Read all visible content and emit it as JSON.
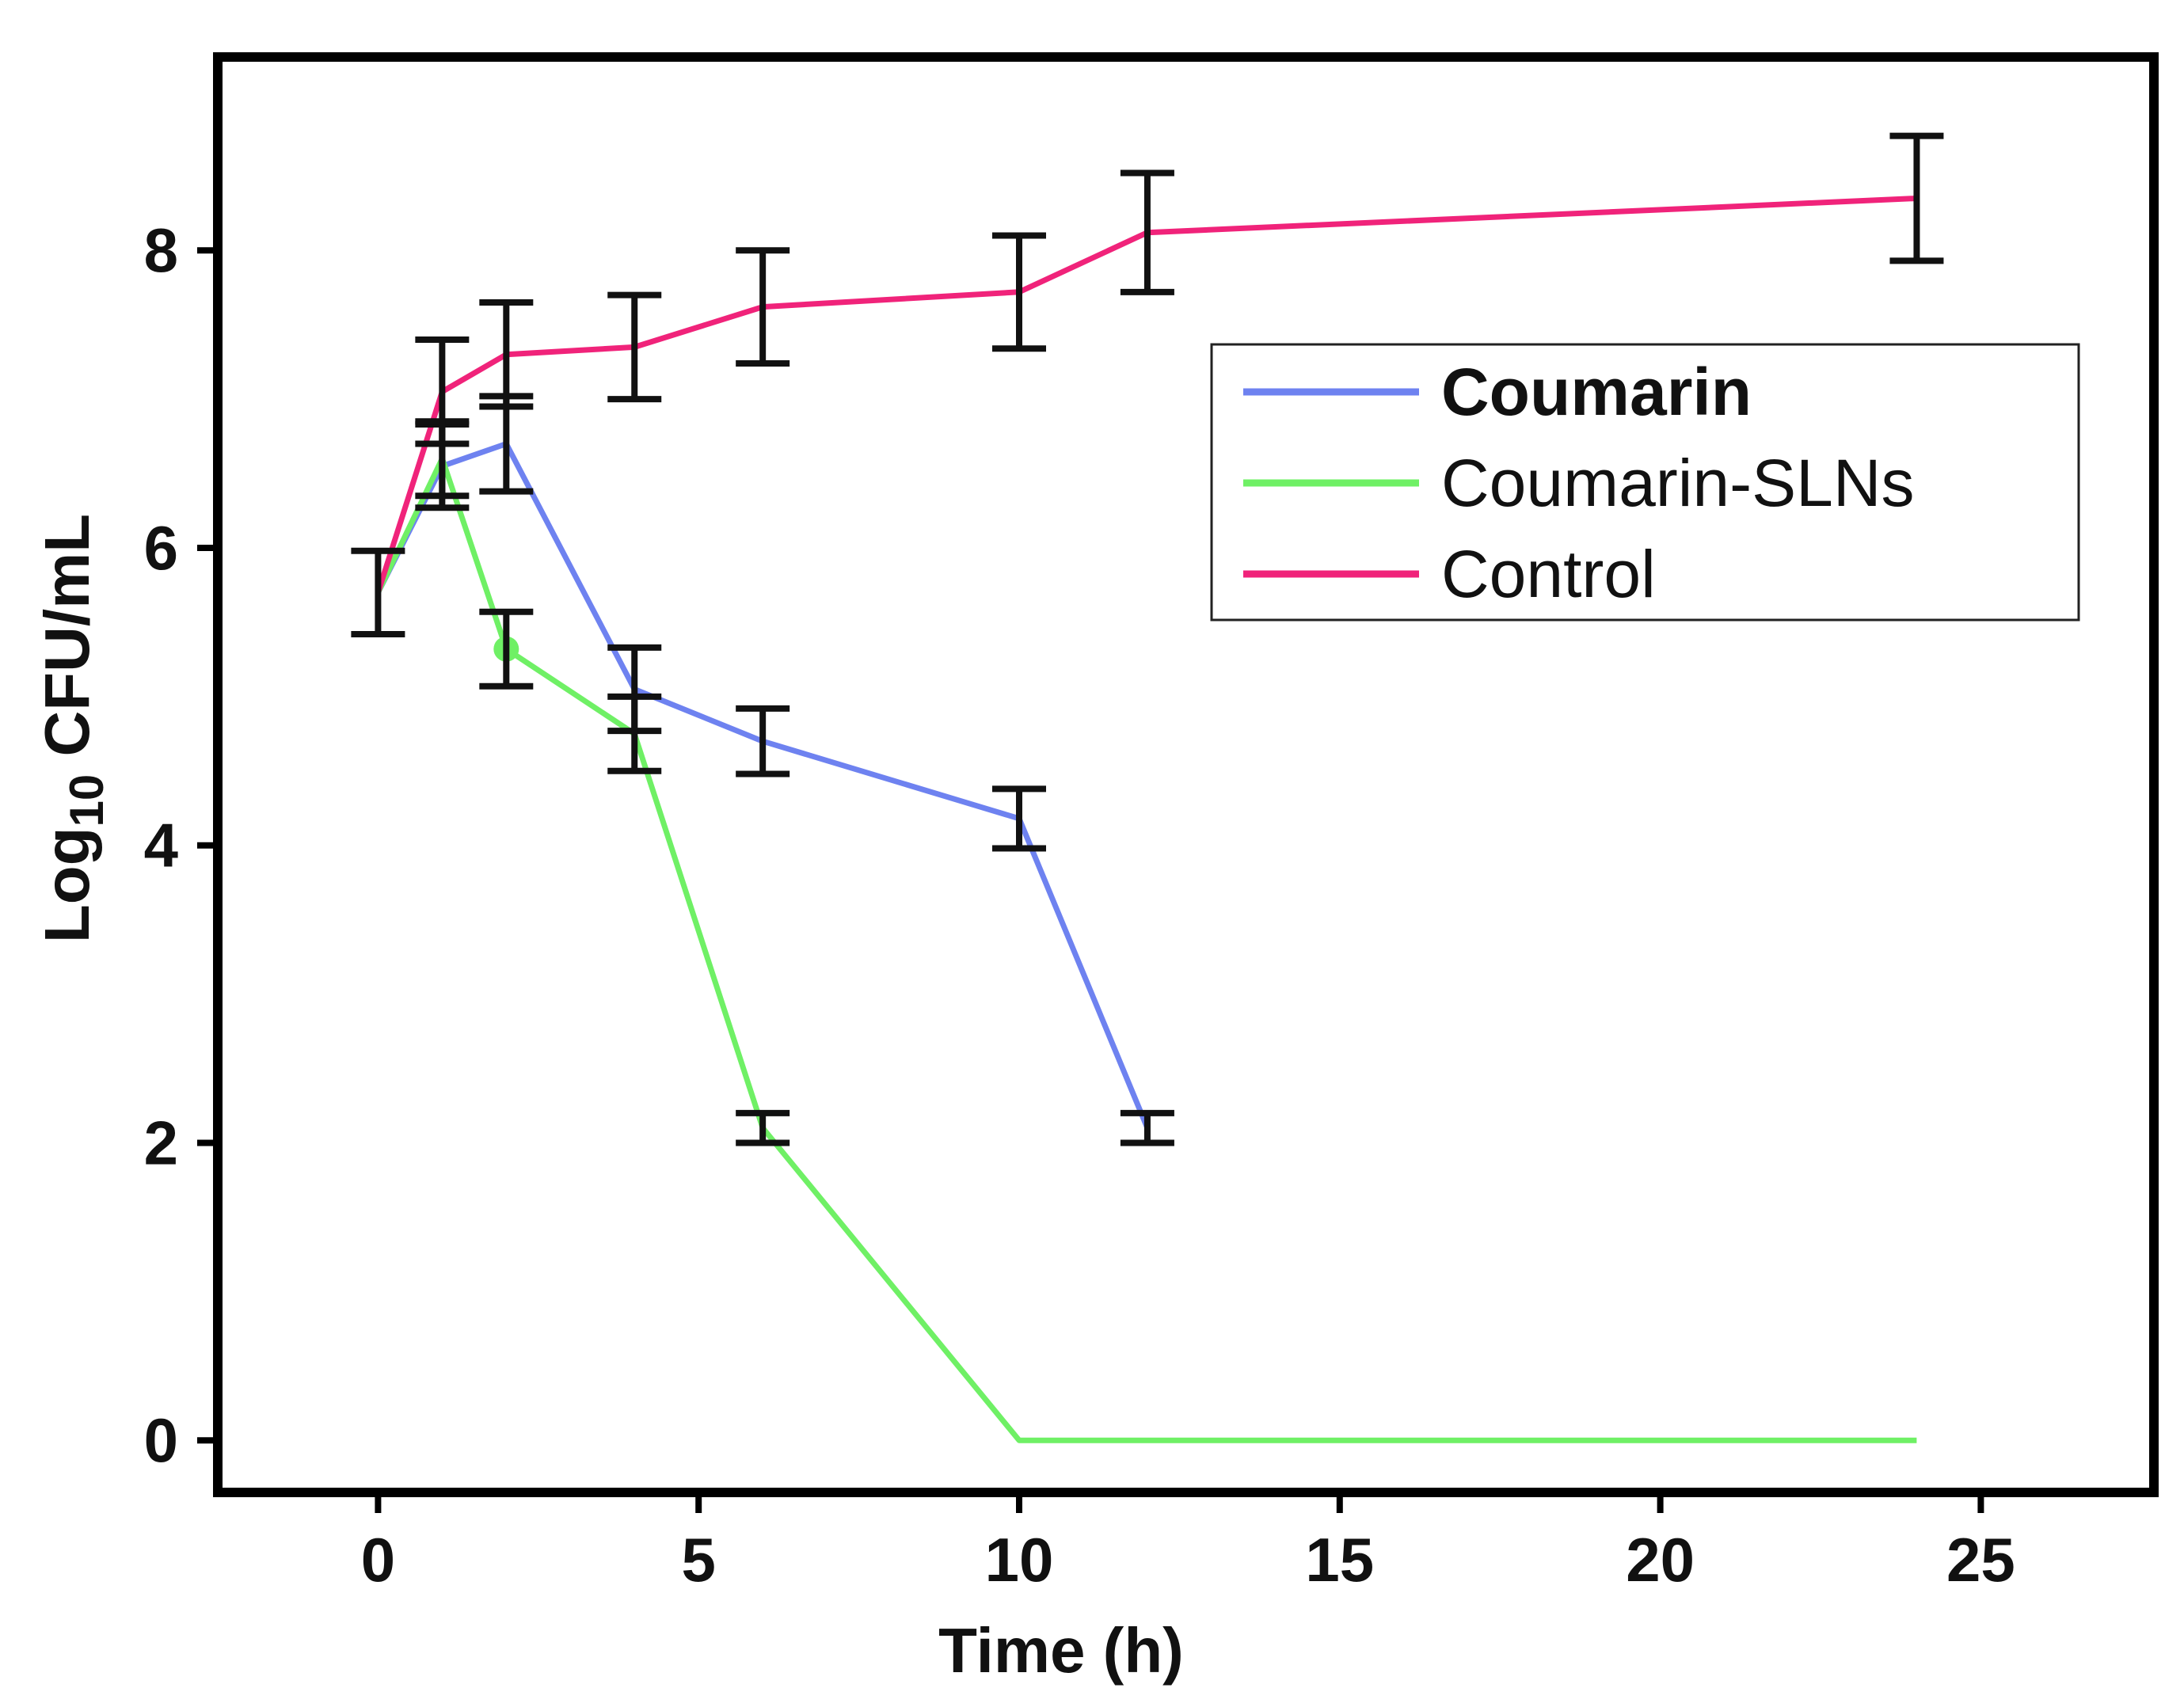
{
  "chart_data": {
    "type": "line",
    "title": "",
    "xlabel": "Time (h)",
    "ylabel_main": "Log",
    "ylabel_sub": "10",
    "ylabel_rest": " CFU/mL",
    "xlim": [
      -2.5,
      27.7
    ],
    "ylim": [
      -0.35,
      9.3
    ],
    "xticks": [
      0,
      5,
      10,
      15,
      20,
      25
    ],
    "yticks": [
      0,
      2,
      4,
      6,
      8
    ],
    "grid": false,
    "legend_position": "top-right",
    "series": [
      {
        "name": "Coumarin",
        "color": "#6e82f0",
        "x": [
          0,
          1,
          2,
          4,
          6,
          10,
          12
        ],
        "y": [
          5.7,
          6.55,
          6.7,
          5.05,
          4.7,
          4.18,
          2.1
        ],
        "err": [
          0,
          0.28,
          0.32,
          0.28,
          0.22,
          0.2,
          0.1
        ]
      },
      {
        "name": "Coumarin-SLNs",
        "color": "#6ff065",
        "x": [
          0,
          1,
          2,
          4,
          6,
          10,
          24
        ],
        "y": [
          5.7,
          6.6,
          5.32,
          4.75,
          2.1,
          0,
          0
        ],
        "err": [
          0,
          0.25,
          0.25,
          0.25,
          0.1,
          0,
          0
        ]
      },
      {
        "name": "Control",
        "color": "#f0237a",
        "x": [
          0,
          1,
          2,
          4,
          6,
          10,
          12,
          24
        ],
        "y": [
          5.7,
          7.05,
          7.3,
          7.35,
          7.62,
          7.72,
          8.12,
          8.35
        ],
        "err": [
          0.28,
          0.35,
          0.35,
          0.35,
          0.38,
          0.38,
          0.4,
          0.42
        ]
      }
    ],
    "legend": [
      {
        "label": "Coumarin",
        "bold": true
      },
      {
        "label": "Coumarin-SLNs",
        "bold": false
      },
      {
        "label": "Control",
        "bold": false
      }
    ]
  }
}
